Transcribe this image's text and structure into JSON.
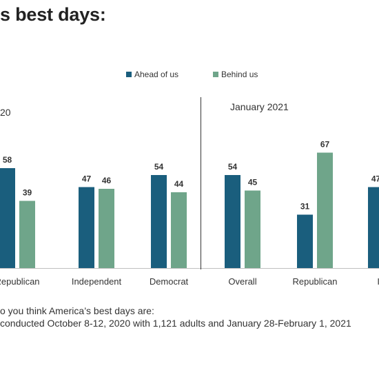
{
  "title": "s best days:",
  "legend": [
    {
      "name": "Ahead of us",
      "color": "#1a5e7d"
    },
    {
      "name": "Behind us",
      "color": "#6fa58a"
    }
  ],
  "period_labels": [
    "20",
    "January 2021"
  ],
  "chart_data": {
    "type": "bar",
    "title": "s best days:",
    "series_names": [
      "Ahead of us",
      "Behind us"
    ],
    "colors": {
      "Ahead of us": "#1a5e7d",
      "Behind us": "#6fa58a"
    },
    "groups": [
      {
        "period": "20",
        "category": "Republican",
        "values": [
          58,
          39
        ]
      },
      {
        "period": "20",
        "category": "Independent",
        "values": [
          47,
          46
        ]
      },
      {
        "period": "20",
        "category": "Democrat",
        "values": [
          54,
          44
        ]
      },
      {
        "period": "January 2021",
        "category": "Overall",
        "values": [
          54,
          45
        ]
      },
      {
        "period": "January 2021",
        "category": "Republican",
        "values": [
          31,
          67
        ]
      },
      {
        "period": "January 2021",
        "category": "Inde",
        "values": [
          47,
          null
        ]
      }
    ],
    "ylim": [
      0,
      80
    ],
    "grid": false
  },
  "notes": [
    "o you think America’s best days are:",
    " conducted October 8-12, 2020 with 1,121 adults and January 28-February 1, 2021"
  ]
}
